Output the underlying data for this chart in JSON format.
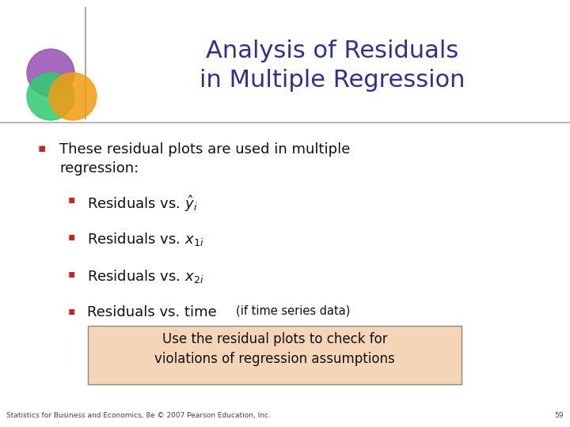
{
  "title_line1": "Analysis of Residuals",
  "title_line2": "in Multiple Regression",
  "title_color": "#2E3191",
  "title_fontsize": 22,
  "bg_color": "#FFFFFF",
  "header_line_color": "#999999",
  "bullet1_text": "These residual plots are used in multiple\nregression:",
  "box_text_line1": "Use the residual plots to check for",
  "box_text_line2": "violations of regression assumptions",
  "box_bg_color": "#F5D5B8",
  "box_border_color": "#888888",
  "footer_text": "Statistics for Business and Economics, 8e © 2007 Pearson Education, Inc.",
  "footer_page": "59",
  "bullet_color": "#CC2222",
  "text_color": "#111111",
  "main_text_size": 13,
  "sub_text_size": 13,
  "logo_purple": "#9B59B6",
  "logo_green": "#2ECC71",
  "logo_orange": "#F39C12",
  "logo_red": "#E74C3C"
}
